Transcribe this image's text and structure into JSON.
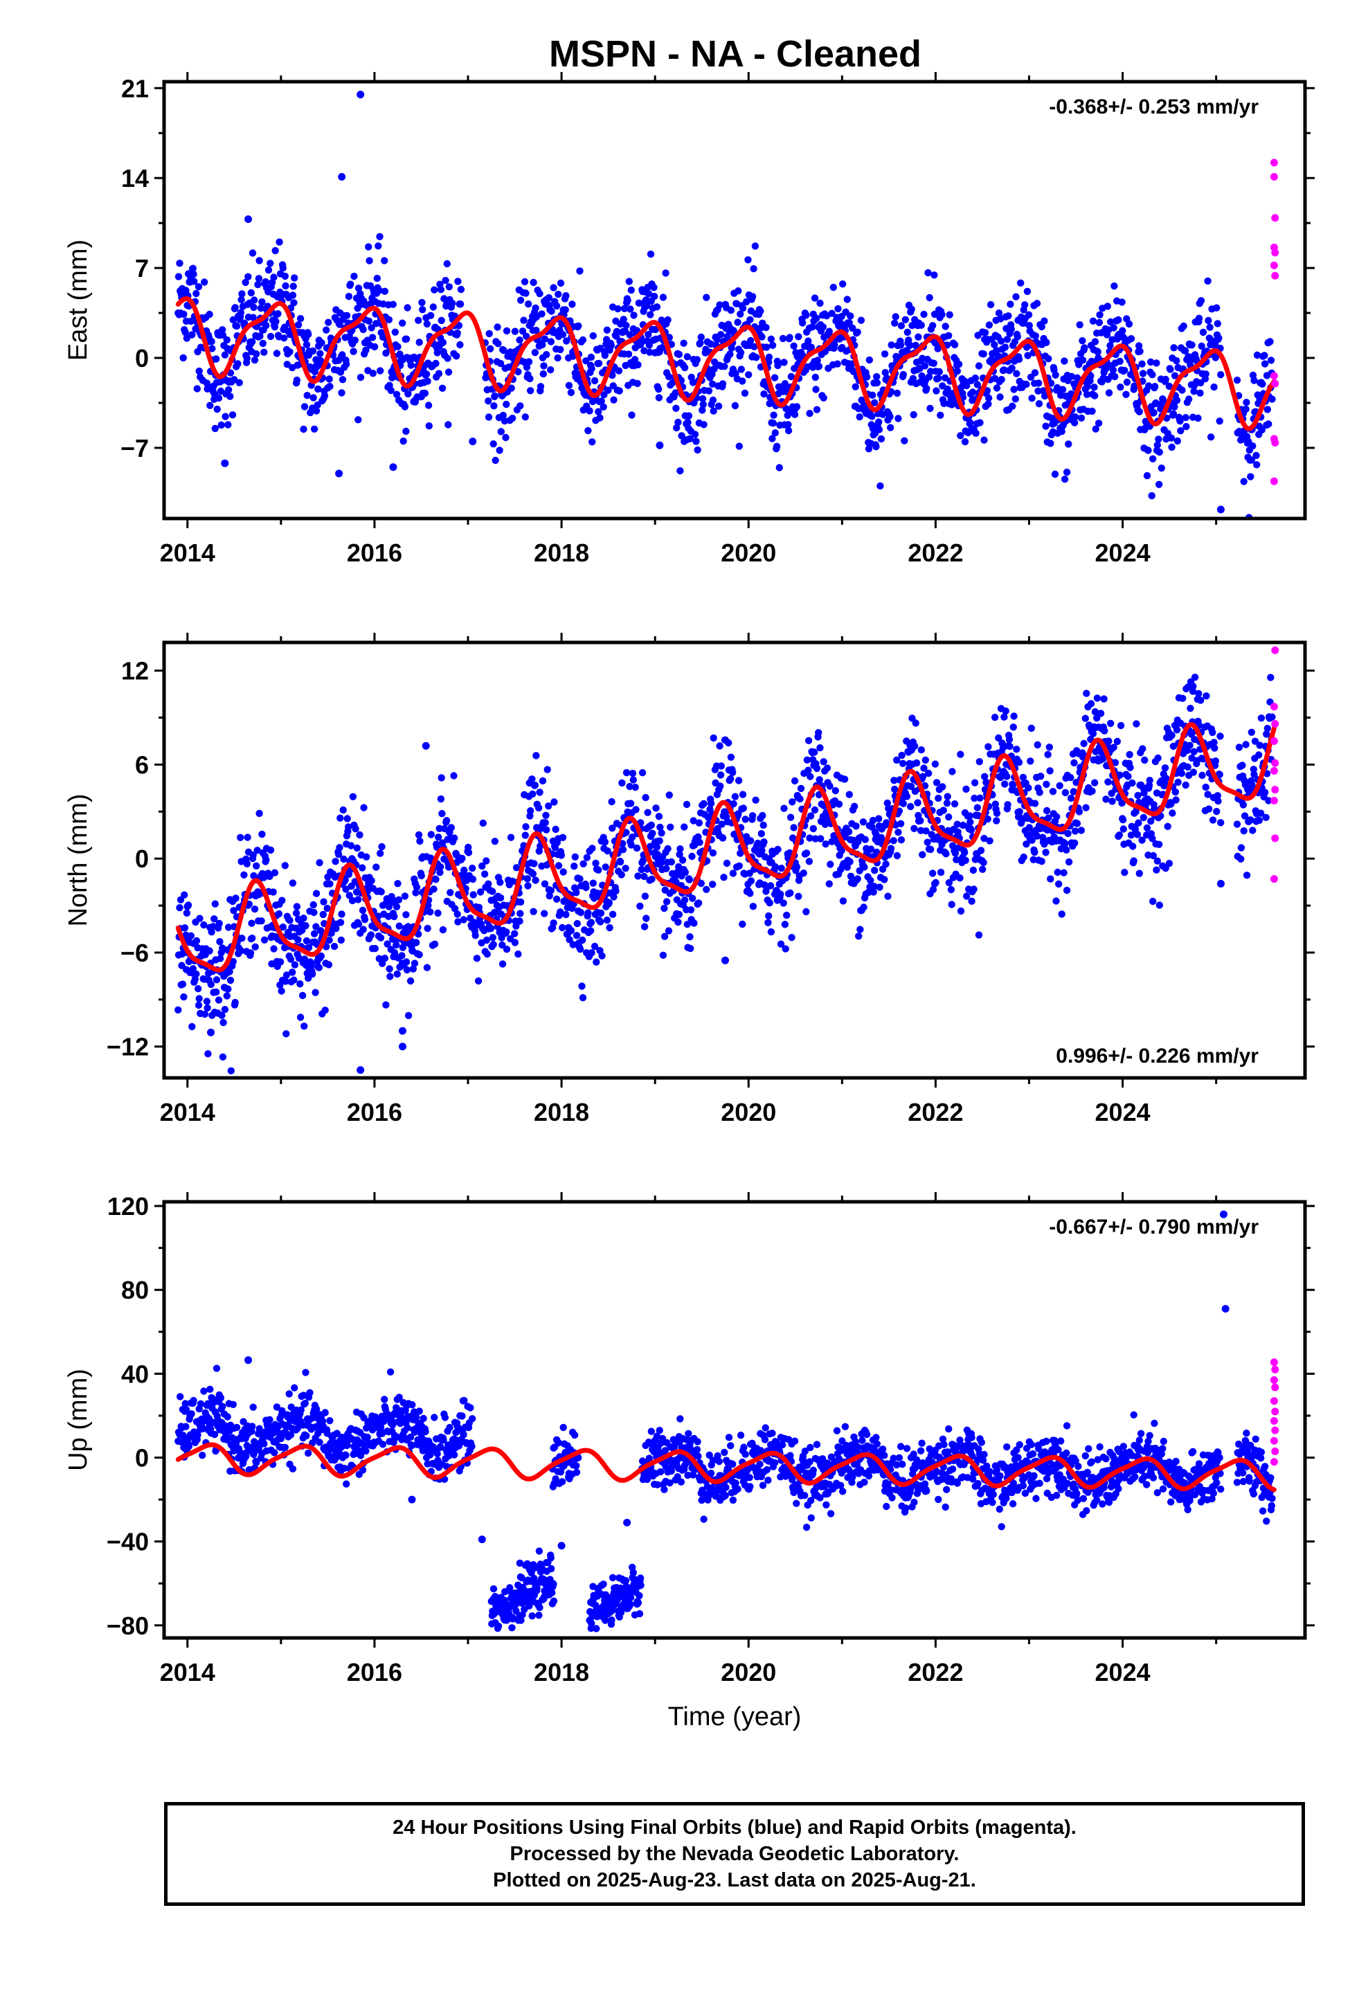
{
  "title": "MSPN  - NA - Cleaned",
  "colors": {
    "final": "#0000ff",
    "rapid": "#ff00ff",
    "fit": "#ff0000",
    "frame": "#000000"
  },
  "chart_data": [
    {
      "type": "scatter",
      "component": "east",
      "title": "",
      "xlabel": "",
      "ylabel": "East (mm)",
      "xlim": [
        2013.75,
        2025.95
      ],
      "ylim": [
        -12.5,
        21.5
      ],
      "xticks": [
        2014,
        2016,
        2018,
        2020,
        2022,
        2024
      ],
      "yticks": [
        21,
        14,
        7,
        0,
        -7
      ],
      "ytick_labels": [
        "21",
        "14",
        "7",
        "0",
        "−7"
      ],
      "rate": "-0.368+/- 0.253 mm/yr",
      "rate_position": "top-right",
      "fit_model": {
        "offset": 0.0,
        "rate": -0.368,
        "annual_amp": 2.6,
        "annual_phase_deg": 130,
        "semiannual_amp": 0.9,
        "semiannual_phase_deg": 40,
        "t0": 2019.5,
        "start": 2013.9,
        "end": 2025.62
      },
      "scatter_model": {
        "start": 2013.9,
        "end": 2025.6,
        "step": 0.0055,
        "spread": 2.2,
        "gaps": [
          [
            2016.93,
            2017.18
          ],
          [
            2025.05,
            2025.22
          ]
        ]
      },
      "outliers": [
        {
          "x": 2015.85,
          "y": 20.5
        },
        {
          "x": 2015.65,
          "y": 14.1
        },
        {
          "x": 2014.65,
          "y": 10.8
        },
        {
          "x": 2014.4,
          "y": -8.2
        },
        {
          "x": 2015.62,
          "y": -9.0
        },
        {
          "x": 2016.2,
          "y": -8.5
        },
        {
          "x": 2025.05,
          "y": -11.8
        },
        {
          "x": 2017.05,
          "y": -6.5
        },
        {
          "x": 2019.05,
          "y": -6.8
        }
      ],
      "rapid": [
        {
          "x": 2025.62,
          "y": 15.2
        },
        {
          "x": 2025.62,
          "y": 14.1
        },
        {
          "x": 2025.63,
          "y": 10.9
        },
        {
          "x": 2025.62,
          "y": 8.6
        },
        {
          "x": 2025.63,
          "y": 8.2
        },
        {
          "x": 2025.62,
          "y": 7.2
        },
        {
          "x": 2025.63,
          "y": 6.4
        },
        {
          "x": 2025.62,
          "y": -1.4
        },
        {
          "x": 2025.63,
          "y": -2.0
        },
        {
          "x": 2025.62,
          "y": -6.3
        },
        {
          "x": 2025.63,
          "y": -6.6
        },
        {
          "x": 2025.62,
          "y": -9.6
        }
      ]
    },
    {
      "type": "scatter",
      "component": "north",
      "title": "",
      "xlabel": "",
      "ylabel": "North (mm)",
      "xlim": [
        2013.75,
        2025.95
      ],
      "ylim": [
        -14.0,
        13.8
      ],
      "xticks": [
        2014,
        2016,
        2018,
        2020,
        2022,
        2024
      ],
      "yticks": [
        12,
        6,
        0,
        -6,
        -12
      ],
      "ytick_labels": [
        "12",
        "6",
        "0",
        "−6",
        "−12"
      ],
      "rate": "0.996+/- 0.226 mm/yr",
      "rate_position": "bottom-right",
      "fit_model": {
        "offset": 0.2,
        "rate": 0.996,
        "annual_amp": 2.5,
        "annual_phase_deg": 180,
        "semiannual_amp": 0.7,
        "semiannual_phase_deg": 300,
        "t0": 2019.5,
        "start": 2013.9,
        "end": 2025.62
      },
      "scatter_model": {
        "start": 2013.9,
        "end": 2025.6,
        "step": 0.0055,
        "spread": 2.0,
        "gaps": [
          [
            2025.05,
            2025.22
          ]
        ]
      },
      "outliers": [
        {
          "x": 2016.55,
          "y": 7.2
        },
        {
          "x": 2015.85,
          "y": -13.5
        },
        {
          "x": 2016.3,
          "y": -11.0
        },
        {
          "x": 2016.3,
          "y": -12.0
        },
        {
          "x": 2014.25,
          "y": -11.1
        },
        {
          "x": 2019.75,
          "y": -6.5
        },
        {
          "x": 2025.05,
          "y": -1.6
        },
        {
          "x": 2024.75,
          "y": 11.0
        }
      ],
      "rapid": [
        {
          "x": 2025.63,
          "y": 13.3
        },
        {
          "x": 2025.62,
          "y": 9.7
        },
        {
          "x": 2025.63,
          "y": 8.6
        },
        {
          "x": 2025.62,
          "y": 7.5
        },
        {
          "x": 2025.63,
          "y": 6.1
        },
        {
          "x": 2025.62,
          "y": 5.6
        },
        {
          "x": 2025.63,
          "y": 4.4
        },
        {
          "x": 2025.62,
          "y": 3.7
        },
        {
          "x": 2025.63,
          "y": 1.3
        },
        {
          "x": 2025.62,
          "y": -1.3
        }
      ]
    },
    {
      "type": "scatter",
      "component": "up",
      "title": "",
      "xlabel": "Time (year)",
      "ylabel": "Up (mm)",
      "xlim": [
        2013.75,
        2025.95
      ],
      "ylim": [
        -86,
        122
      ],
      "xticks": [
        2014,
        2016,
        2018,
        2020,
        2022,
        2024
      ],
      "yticks": [
        120,
        80,
        40,
        0,
        -40,
        -80
      ],
      "ytick_labels": [
        "120",
        "80",
        "40",
        "0",
        "−40",
        "−80"
      ],
      "rate": "-0.667+/- 0.790 mm/yr",
      "rate_position": "top-right",
      "fit_model": {
        "offset": -4.0,
        "rate": -0.667,
        "annual_amp": 6.5,
        "annual_phase_deg": 20,
        "semiannual_amp": 1.5,
        "semiannual_phase_deg": 200,
        "t0": 2019.5,
        "start": 2013.9,
        "end": 2025.62
      },
      "scatter_model": {
        "start": 2013.9,
        "end": 2025.6,
        "step": 0.0055,
        "spread": 7.0,
        "gaps": [
          [
            2017.05,
            2017.9
          ],
          [
            2018.18,
            2018.85
          ],
          [
            2025.05,
            2025.22
          ]
        ],
        "level_shifts": [
          {
            "from": 2013.9,
            "to": 2017.05,
            "shift": 12.0
          }
        ]
      },
      "offset_segments": [
        {
          "start": 2017.25,
          "end": 2017.92,
          "center": -66.0,
          "slope": 22.0,
          "spread": 5.5
        },
        {
          "start": 2018.3,
          "end": 2018.85,
          "center": -68.0,
          "slope": 22.0,
          "spread": 5.0
        }
      ],
      "outliers": [
        {
          "x": 2025.08,
          "y": 116.0
        },
        {
          "x": 2025.1,
          "y": 71.0
        },
        {
          "x": 2014.65,
          "y": 46.5
        },
        {
          "x": 2017.15,
          "y": -39.0
        },
        {
          "x": 2018.0,
          "y": -42.0
        },
        {
          "x": 2018.7,
          "y": -31.0
        },
        {
          "x": 2016.4,
          "y": -20.0
        }
      ],
      "rapid": [
        {
          "x": 2025.62,
          "y": 45.5
        },
        {
          "x": 2025.63,
          "y": 42.0
        },
        {
          "x": 2025.62,
          "y": 37.0
        },
        {
          "x": 2025.63,
          "y": 33.5
        },
        {
          "x": 2025.62,
          "y": 27.0
        },
        {
          "x": 2025.63,
          "y": 22.0
        },
        {
          "x": 2025.62,
          "y": 17.5
        },
        {
          "x": 2025.63,
          "y": 13.0
        },
        {
          "x": 2025.62,
          "y": 8.0
        },
        {
          "x": 2025.63,
          "y": 3.0
        },
        {
          "x": 2025.62,
          "y": -2.0
        }
      ]
    }
  ],
  "info": {
    "line1": "24 Hour Positions Using Final Orbits (blue) and Rapid Orbits (magenta).",
    "line2": "Processed by the Nevada Geodetic Laboratory.",
    "line3": "Plotted on 2025-Aug-23. Last data on 2025-Aug-21."
  }
}
